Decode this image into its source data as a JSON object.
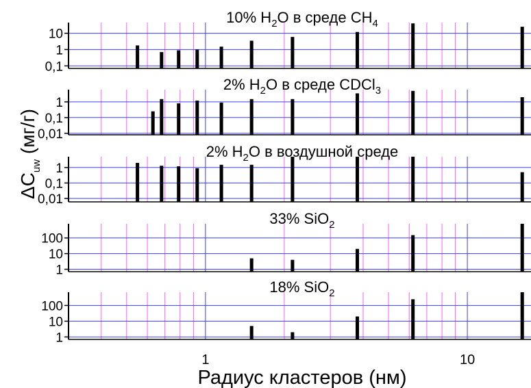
{
  "figure": {
    "y_axis_label": "ΔC",
    "y_axis_label_sub": "uw",
    "y_axis_label_unit": " (мг/г)",
    "x_axis_label": "Радиус кластеров (нм)"
  },
  "chart_data": [
    {
      "type": "bar",
      "title_parts": [
        {
          "t": "10% H",
          "s": "n"
        },
        {
          "t": "2",
          "s": "sub"
        },
        {
          "t": "O в среде CH",
          "s": "n"
        },
        {
          "t": "4",
          "s": "sub"
        }
      ],
      "x": [
        0.55,
        0.68,
        0.79,
        0.93,
        1.15,
        1.5,
        2.15,
        3.8,
        6.2,
        16.2
      ],
      "values": [
        1.8,
        0.7,
        0.9,
        1.0,
        1.5,
        3.5,
        6.0,
        12.0,
        40.0,
        25.0
      ],
      "x_scale": "log",
      "y_scale": "log",
      "ylim": [
        0.07,
        45
      ],
      "ytick_labels": [
        "0,1",
        "1",
        "10"
      ],
      "ytick_values": [
        0.1,
        1,
        10
      ]
    },
    {
      "type": "bar",
      "title_parts": [
        {
          "t": "2% H",
          "s": "n"
        },
        {
          "t": "2",
          "s": "sub"
        },
        {
          "t": "O в среде CDCl",
          "s": "n"
        },
        {
          "t": "3",
          "s": "sub"
        }
      ],
      "x": [
        0.63,
        0.68,
        0.79,
        0.93,
        1.15,
        1.5,
        2.15,
        3.8,
        6.2,
        16.2
      ],
      "values": [
        0.25,
        1.5,
        0.8,
        1.2,
        0.9,
        1.5,
        1.5,
        3.5,
        5.0,
        2.0
      ],
      "x_scale": "log",
      "y_scale": "log",
      "ylim": [
        0.008,
        6
      ],
      "ytick_labels": [
        "0,01",
        "0,1",
        "1"
      ],
      "ytick_values": [
        0.01,
        0.1,
        1
      ]
    },
    {
      "type": "bar",
      "title_parts": [
        {
          "t": "2% H",
          "s": "n"
        },
        {
          "t": "2",
          "s": "sub"
        },
        {
          "t": "O в воздушной среде",
          "s": "n"
        }
      ],
      "x": [
        0.55,
        0.68,
        0.79,
        0.93,
        1.15,
        1.5,
        2.15,
        3.8,
        6.2,
        16.2
      ],
      "values": [
        2.0,
        1.3,
        1.2,
        0.9,
        1.5,
        1.5,
        5.0,
        5.0,
        5.0,
        0.5
      ],
      "x_scale": "log",
      "y_scale": "log",
      "ylim": [
        0.006,
        5
      ],
      "ytick_labels": [
        "0,01",
        "0,1",
        "1"
      ],
      "ytick_values": [
        0.01,
        0.1,
        1
      ]
    },
    {
      "type": "bar",
      "title_parts": [
        {
          "t": "33% SiO",
          "s": "n"
        },
        {
          "t": "2",
          "s": "sub"
        }
      ],
      "x": [
        1.5,
        2.15,
        3.8,
        6.2,
        16.2
      ],
      "values": [
        5.0,
        4.0,
        20.0,
        150.0,
        800.0
      ],
      "x_scale": "log",
      "y_scale": "log",
      "ylim": [
        0.7,
        800
      ],
      "ytick_labels": [
        "1",
        "10",
        "100"
      ],
      "ytick_values": [
        1,
        10,
        100
      ]
    },
    {
      "type": "bar",
      "title_parts": [
        {
          "t": "18% SiO",
          "s": "n"
        },
        {
          "t": "2",
          "s": "sub"
        }
      ],
      "x": [
        1.5,
        2.15,
        3.8,
        6.2,
        16.2
      ],
      "values": [
        5.0,
        2.0,
        20.0,
        250.0,
        700.0
      ],
      "x_scale": "log",
      "y_scale": "log",
      "ylim": [
        0.7,
        700
      ],
      "ytick_labels": [
        "1",
        "10",
        "100"
      ],
      "ytick_values": [
        1,
        10,
        100
      ]
    }
  ],
  "x_axis": {
    "min": 0.3,
    "max": 17.5,
    "scale": "log",
    "tick_labels": [
      "1",
      "10"
    ],
    "tick_values": [
      1,
      10
    ]
  },
  "colors": {
    "bars": "#000000",
    "major_grid": "#3c3cff",
    "minor_grid": "#ff5cff",
    "axis": "#000000"
  }
}
